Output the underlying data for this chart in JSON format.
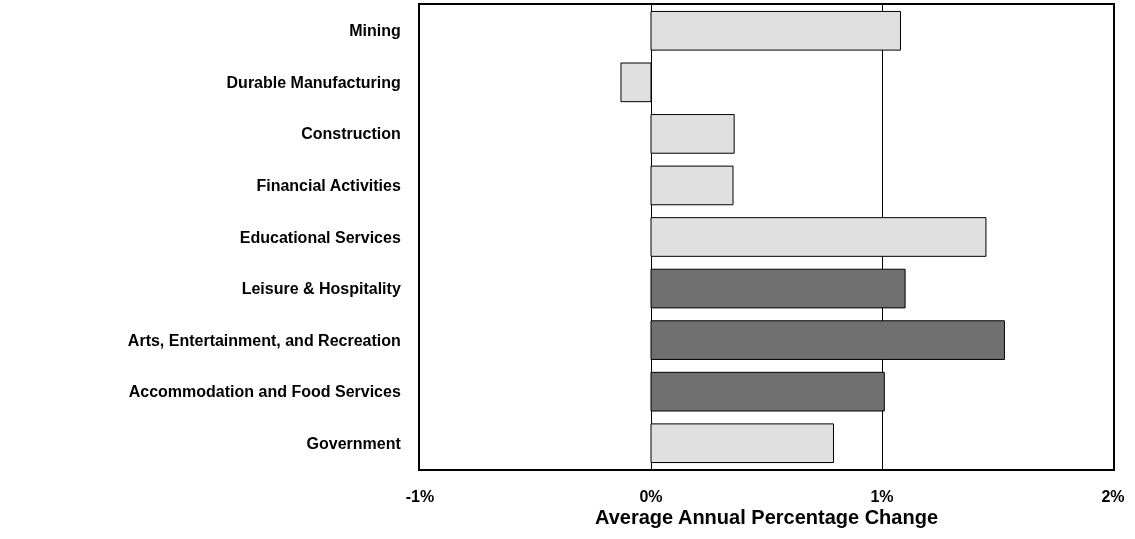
{
  "chart_data": {
    "type": "bar",
    "orientation": "horizontal",
    "xlabel": "Average Annual Percentage Change",
    "categories": [
      "Mining",
      "Durable Manufacturing",
      "Construction",
      "Financial Activities",
      "Educational Services",
      "Leisure & Hospitality",
      "Arts, Entertainment, and Recreation",
      "Accommodation and Food Services",
      "Government"
    ],
    "values": [
      1.08,
      -0.13,
      0.36,
      0.355,
      1.45,
      1.1,
      1.53,
      1.01,
      0.79
    ],
    "colors": [
      "#e0e0e0",
      "#e0e0e0",
      "#e0e0e0",
      "#e0e0e0",
      "#e0e0e0",
      "#707070",
      "#707070",
      "#707070",
      "#e0e0e0"
    ],
    "xlim": [
      -1,
      2
    ],
    "xticks": [
      {
        "value": -1,
        "label": "-1%"
      },
      {
        "value": 0,
        "label": "0%"
      },
      {
        "value": 1,
        "label": "1%"
      },
      {
        "value": 2,
        "label": "2%"
      }
    ],
    "grid": "x",
    "legend": false
  }
}
